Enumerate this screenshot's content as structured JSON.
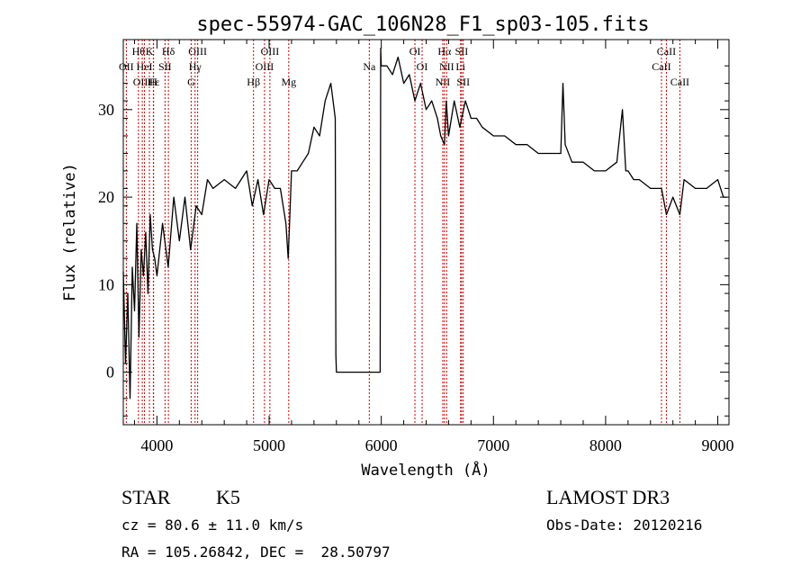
{
  "chart_data": {
    "type": "line",
    "title": "spec-55974-GAC_106N28_F1_sp03-105.fits",
    "xlabel": "Wavelength (Å)",
    "ylabel": "Flux (relative)",
    "xlim": [
      3700,
      9100
    ],
    "ylim": [
      -6,
      38
    ],
    "xticks": [
      4000,
      5000,
      6000,
      7000,
      8000,
      9000
    ],
    "yticks": [
      0,
      10,
      20,
      30
    ],
    "series": [
      {
        "name": "spectrum",
        "x": [
          3700,
          3720,
          3740,
          3760,
          3780,
          3800,
          3820,
          3840,
          3860,
          3880,
          3900,
          3920,
          3940,
          3960,
          3980,
          4000,
          4050,
          4100,
          4150,
          4200,
          4250,
          4300,
          4350,
          4400,
          4450,
          4500,
          4600,
          4700,
          4800,
          4850,
          4900,
          4950,
          5000,
          5050,
          5100,
          5150,
          5170,
          5185,
          5200,
          5250,
          5300,
          5350,
          5400,
          5450,
          5500,
          5550,
          5580,
          5590,
          5595,
          5600,
          5900,
          5990,
          5995,
          6000,
          6050,
          6100,
          6150,
          6200,
          6250,
          6300,
          6350,
          6400,
          6450,
          6500,
          6530,
          6563,
          6580,
          6600,
          6650,
          6700,
          6750,
          6800,
          6850,
          6900,
          7000,
          7100,
          7200,
          7300,
          7400,
          7500,
          7600,
          7620,
          7640,
          7700,
          7800,
          7900,
          8000,
          8100,
          8150,
          8180,
          8200,
          8250,
          8300,
          8400,
          8498,
          8542,
          8600,
          8662,
          8700,
          8800,
          8900,
          9000,
          9050,
          9080
        ],
        "values": [
          11.5,
          1,
          9,
          -3,
          12,
          7,
          17,
          4,
          14,
          11,
          16,
          9,
          18,
          14,
          13,
          11,
          17,
          12,
          20,
          15,
          20,
          14,
          19,
          18,
          22,
          21,
          22,
          21,
          23,
          19,
          22,
          18,
          22,
          21,
          21,
          17,
          13,
          18,
          23,
          23,
          24,
          25,
          28,
          27,
          31,
          33,
          30,
          29,
          2,
          0,
          0,
          0,
          37,
          35,
          35,
          34,
          36,
          33,
          34,
          31,
          33,
          30,
          31,
          29,
          27,
          26,
          31,
          27,
          31,
          28,
          31,
          29,
          29,
          28,
          27,
          27,
          26,
          26,
          25,
          25,
          25,
          33,
          26,
          24,
          24,
          23,
          23,
          24,
          30,
          23,
          23,
          22,
          22,
          21,
          21,
          18,
          20,
          18,
          22,
          21,
          21,
          22,
          20,
          20
        ]
      }
    ],
    "lines": [
      {
        "wave": 3727,
        "row": 1,
        "label": "OII"
      },
      {
        "wave": 3835,
        "row": 0,
        "label": "Hθ"
      },
      {
        "wave": 3869,
        "row": 2,
        "label": "OIII"
      },
      {
        "wave": 3889,
        "row": 1,
        "label": "HeI"
      },
      {
        "wave": 3933,
        "row": 0,
        "label": "K"
      },
      {
        "wave": 3970,
        "row": 2,
        "label": "Hε"
      },
      {
        "wave": 3968,
        "row": 2,
        "label": "H"
      },
      {
        "wave": 4072,
        "row": 1,
        "label": "SII"
      },
      {
        "wave": 4102,
        "row": 0,
        "label": "Hδ"
      },
      {
        "wave": 4305,
        "row": 2,
        "label": "G"
      },
      {
        "wave": 4340,
        "row": 1,
        "label": "Hγ"
      },
      {
        "wave": 4363,
        "row": 0,
        "label": "OIII"
      },
      {
        "wave": 4861,
        "row": 2,
        "label": "Hβ"
      },
      {
        "wave": 4959,
        "row": 1,
        "label": "OIII"
      },
      {
        "wave": 5007,
        "row": 0,
        "label": "OIII"
      },
      {
        "wave": 5175,
        "row": 2,
        "label": "Mg"
      },
      {
        "wave": 5893,
        "row": 1,
        "label": "Na"
      },
      {
        "wave": 6300,
        "row": 0,
        "label": "OI"
      },
      {
        "wave": 6364,
        "row": 1,
        "label": "OI"
      },
      {
        "wave": 6548,
        "row": 2,
        "label": "NII"
      },
      {
        "wave": 6563,
        "row": 0,
        "label": "Hα"
      },
      {
        "wave": 6583,
        "row": 1,
        "label": "NII"
      },
      {
        "wave": 6707,
        "row": 1,
        "label": "Li"
      },
      {
        "wave": 6716,
        "row": 0,
        "label": "SII"
      },
      {
        "wave": 6731,
        "row": 2,
        "label": "SII"
      },
      {
        "wave": 8498,
        "row": 1,
        "label": "CaII"
      },
      {
        "wave": 8542,
        "row": 0,
        "label": "CaII"
      },
      {
        "wave": 8662,
        "row": 2,
        "label": "CaII"
      }
    ]
  },
  "info": {
    "class": "STAR",
    "subclass": "K5",
    "survey": "LAMOST DR3",
    "cz": "cz = 80.6 ± 11.0 km/s",
    "obs_date": "Obs-Date: 20120216",
    "radec": "RA = 105.26842, DEC =  28.50797"
  },
  "colors": {
    "line_marker": "#cc0000",
    "spectrum": "#000000"
  }
}
